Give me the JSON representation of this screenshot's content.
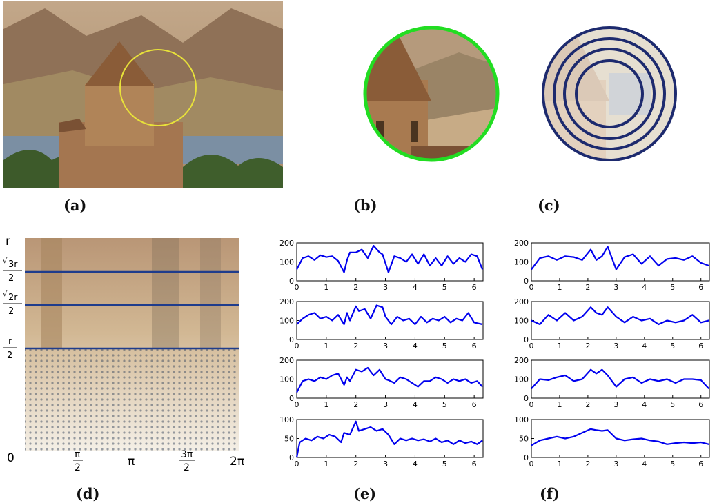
{
  "captions": {
    "a": "(a)",
    "b": "(b)",
    "c": "(c)",
    "d": "(d)",
    "e": "(e)",
    "f": "(f)"
  },
  "photo_scene": {
    "sky": "#b89a7c",
    "hills": "#9c7c5e",
    "water": "#7b8fa3",
    "stone": "#a77a50",
    "trees": "#3d5a2a",
    "circle": "#e8e23a"
  },
  "ring_colors": {
    "outline_b": "#22dd22",
    "rings_c": "#1d2a6e"
  },
  "polar_panel": {
    "y_labels": {
      "r": "r",
      "sqrt3": {
        "sqrt": "√",
        "num": "3r",
        "den": "2"
      },
      "sqrt2": {
        "sqrt": "√",
        "num": "2r",
        "den": "2"
      },
      "half": {
        "num": "r",
        "den": "2"
      },
      "zero": "0"
    },
    "x_labels": {
      "pi2": {
        "num": "π",
        "den": "2"
      },
      "pi": "π",
      "pi32": {
        "num": "3π",
        "den": "2"
      },
      "two_pi": "2π"
    },
    "line_color": "#1f3c8c"
  },
  "chart_data": [
    {
      "type": "line",
      "panel": "e",
      "row": 1,
      "x": [
        0,
        0.2,
        0.4,
        0.6,
        0.8,
        1.0,
        1.2,
        1.4,
        1.6,
        1.7,
        1.8,
        2.0,
        2.2,
        2.4,
        2.6,
        2.8,
        2.9,
        3.1,
        3.3,
        3.5,
        3.7,
        3.9,
        4.1,
        4.3,
        4.5,
        4.7,
        4.9,
        5.1,
        5.3,
        5.5,
        5.7,
        5.9,
        6.1,
        6.28
      ],
      "y": [
        60,
        120,
        130,
        110,
        135,
        125,
        130,
        105,
        45,
        110,
        150,
        150,
        165,
        120,
        185,
        150,
        140,
        45,
        130,
        120,
        100,
        140,
        90,
        140,
        80,
        120,
        80,
        130,
        90,
        120,
        100,
        140,
        130,
        60
      ],
      "ylim": [
        0,
        200
      ],
      "xlim": [
        0,
        6.3
      ],
      "yticks": [
        "0",
        "100",
        "200"
      ],
      "xticks": [
        "0",
        "1",
        "2",
        "3",
        "4",
        "5",
        "6"
      ]
    },
    {
      "type": "line",
      "panel": "e",
      "row": 2,
      "x": [
        0,
        0.2,
        0.4,
        0.6,
        0.8,
        1.0,
        1.2,
        1.4,
        1.6,
        1.7,
        1.8,
        2.0,
        2.1,
        2.3,
        2.5,
        2.7,
        2.9,
        3.0,
        3.2,
        3.4,
        3.6,
        3.8,
        4.0,
        4.2,
        4.4,
        4.6,
        4.8,
        5.0,
        5.2,
        5.4,
        5.6,
        5.8,
        6.0,
        6.28
      ],
      "y": [
        80,
        110,
        130,
        140,
        110,
        120,
        100,
        130,
        80,
        140,
        100,
        175,
        150,
        160,
        110,
        180,
        170,
        120,
        80,
        120,
        100,
        110,
        80,
        120,
        90,
        110,
        100,
        120,
        90,
        110,
        100,
        140,
        90,
        80
      ],
      "ylim": [
        0,
        200
      ],
      "xlim": [
        0,
        6.3
      ],
      "yticks": [
        "0",
        "100",
        "200"
      ],
      "xticks": [
        "0",
        "1",
        "2",
        "3",
        "4",
        "5",
        "6"
      ]
    },
    {
      "type": "line",
      "panel": "e",
      "row": 3,
      "x": [
        0,
        0.2,
        0.4,
        0.6,
        0.8,
        1.0,
        1.2,
        1.4,
        1.6,
        1.7,
        1.8,
        2.0,
        2.2,
        2.4,
        2.6,
        2.8,
        3.0,
        3.1,
        3.3,
        3.5,
        3.7,
        3.9,
        4.1,
        4.3,
        4.5,
        4.7,
        4.9,
        5.1,
        5.3,
        5.5,
        5.7,
        5.9,
        6.1,
        6.28
      ],
      "y": [
        30,
        90,
        100,
        90,
        110,
        100,
        120,
        130,
        70,
        110,
        90,
        150,
        140,
        160,
        120,
        150,
        100,
        95,
        80,
        110,
        100,
        80,
        60,
        90,
        90,
        110,
        100,
        80,
        100,
        90,
        100,
        80,
        90,
        60
      ],
      "ylim": [
        0,
        200
      ],
      "xlim": [
        0,
        6.3
      ],
      "yticks": [
        "0",
        "100",
        "200"
      ],
      "xticks": [
        "0",
        "1",
        "2",
        "3",
        "4",
        "5",
        "6"
      ]
    },
    {
      "type": "line",
      "panel": "e",
      "row": 4,
      "x": [
        0,
        0.1,
        0.3,
        0.5,
        0.7,
        0.9,
        1.1,
        1.3,
        1.5,
        1.6,
        1.8,
        2.0,
        2.1,
        2.3,
        2.5,
        2.7,
        2.9,
        3.1,
        3.3,
        3.5,
        3.7,
        3.9,
        4.1,
        4.3,
        4.5,
        4.7,
        4.9,
        5.1,
        5.3,
        5.5,
        5.7,
        5.9,
        6.1,
        6.28
      ],
      "y": [
        0,
        40,
        50,
        45,
        55,
        50,
        60,
        55,
        40,
        65,
        60,
        95,
        70,
        75,
        80,
        70,
        75,
        60,
        35,
        50,
        45,
        50,
        45,
        48,
        42,
        50,
        40,
        45,
        35,
        45,
        38,
        42,
        35,
        45
      ],
      "ylim": [
        0,
        100
      ],
      "xlim": [
        0,
        6.3
      ],
      "yticks": [
        "0",
        "50",
        "100"
      ],
      "xticks": [
        "0",
        "1",
        "2",
        "3",
        "4",
        "5",
        "6"
      ]
    },
    {
      "type": "line",
      "panel": "f",
      "row": 1,
      "x": [
        0,
        0.3,
        0.6,
        0.9,
        1.2,
        1.5,
        1.8,
        2.1,
        2.3,
        2.5,
        2.7,
        3.0,
        3.3,
        3.6,
        3.9,
        4.2,
        4.5,
        4.8,
        5.1,
        5.4,
        5.7,
        6.0,
        6.28
      ],
      "y": [
        60,
        120,
        130,
        110,
        130,
        125,
        110,
        165,
        110,
        130,
        180,
        60,
        125,
        140,
        90,
        130,
        80,
        115,
        120,
        110,
        130,
        95,
        80
      ],
      "ylim": [
        0,
        200
      ],
      "xlim": [
        0,
        6.3
      ],
      "yticks": [
        "0",
        "100",
        "200"
      ],
      "xticks": [
        "0",
        "1",
        "2",
        "3",
        "4",
        "5",
        "6"
      ]
    },
    {
      "type": "line",
      "panel": "f",
      "row": 2,
      "x": [
        0,
        0.3,
        0.6,
        0.9,
        1.2,
        1.5,
        1.8,
        2.1,
        2.3,
        2.5,
        2.7,
        3.0,
        3.3,
        3.6,
        3.9,
        4.2,
        4.5,
        4.8,
        5.1,
        5.4,
        5.7,
        6.0,
        6.28
      ],
      "y": [
        100,
        80,
        130,
        100,
        140,
        100,
        120,
        170,
        140,
        130,
        170,
        120,
        90,
        120,
        100,
        110,
        80,
        100,
        90,
        100,
        130,
        90,
        100
      ],
      "ylim": [
        0,
        200
      ],
      "xlim": [
        0,
        6.3
      ],
      "yticks": [
        "0",
        "100",
        "200"
      ],
      "xticks": [
        "0",
        "1",
        "2",
        "3",
        "4",
        "5",
        "6"
      ]
    },
    {
      "type": "line",
      "panel": "f",
      "row": 3,
      "x": [
        0,
        0.3,
        0.6,
        0.9,
        1.2,
        1.5,
        1.8,
        2.1,
        2.3,
        2.5,
        2.7,
        3.0,
        3.3,
        3.6,
        3.9,
        4.2,
        4.5,
        4.8,
        5.1,
        5.4,
        5.7,
        6.0,
        6.28
      ],
      "y": [
        50,
        100,
        95,
        110,
        120,
        90,
        100,
        150,
        130,
        150,
        120,
        60,
        100,
        110,
        80,
        100,
        90,
        100,
        80,
        100,
        100,
        95,
        50
      ],
      "ylim": [
        0,
        200
      ],
      "xlim": [
        0,
        6.3
      ],
      "yticks": [
        "0",
        "100",
        "200"
      ],
      "xticks": [
        "0",
        "1",
        "2",
        "3",
        "4",
        "5",
        "6"
      ]
    },
    {
      "type": "line",
      "panel": "f",
      "row": 4,
      "x": [
        0,
        0.3,
        0.6,
        0.9,
        1.2,
        1.5,
        1.8,
        2.1,
        2.3,
        2.5,
        2.7,
        3.0,
        3.3,
        3.6,
        3.9,
        4.2,
        4.5,
        4.8,
        5.1,
        5.4,
        5.7,
        6.0,
        6.28
      ],
      "y": [
        32,
        45,
        50,
        55,
        50,
        55,
        65,
        75,
        72,
        70,
        72,
        50,
        45,
        48,
        50,
        45,
        42,
        35,
        38,
        40,
        38,
        40,
        35
      ],
      "ylim": [
        0,
        100
      ],
      "xlim": [
        0,
        6.3
      ],
      "yticks": [
        "0",
        "50",
        "100"
      ],
      "xticks": [
        "0",
        "1",
        "2",
        "3",
        "4",
        "5",
        "6"
      ]
    }
  ]
}
